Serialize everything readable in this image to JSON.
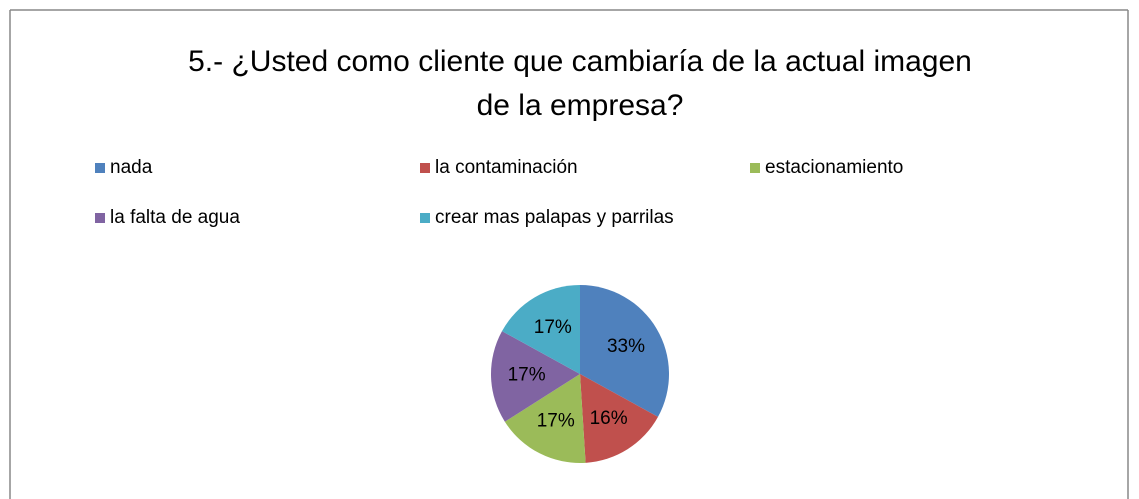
{
  "chart_data": {
    "type": "pie",
    "title": "5.- ¿Usted como cliente que cambiaría de la actual imagen de la empresa?",
    "categories": [
      "nada",
      "la contaminación",
      "estacionamiento",
      "la falta de agua",
      "crear mas palapas y parrilas"
    ],
    "values": [
      33,
      16,
      17,
      17,
      17
    ],
    "value_labels": [
      "33%",
      "16%",
      "17%",
      "17%",
      "17%"
    ],
    "colors": [
      "#4f81bd",
      "#c0504d",
      "#9bbb59",
      "#8064a2",
      "#4bacc6"
    ],
    "legend": "top"
  }
}
